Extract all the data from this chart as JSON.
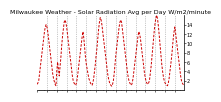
{
  "title": "Milwaukee Weather - Solar Radiation Avg per Day W/m2/minute",
  "line_color": "#cc0000",
  "background_color": "#ffffff",
  "grid_color": "#999999",
  "y_values": [
    1.2,
    1.5,
    2.0,
    3.5,
    5.0,
    6.5,
    8.0,
    9.5,
    11.0,
    12.5,
    13.5,
    14.0,
    13.5,
    12.5,
    11.0,
    9.5,
    8.0,
    6.5,
    5.0,
    3.5,
    2.5,
    1.8,
    1.2,
    0.9,
    4.0,
    6.0,
    4.5,
    3.0,
    5.0,
    7.0,
    9.5,
    11.5,
    13.0,
    14.5,
    15.0,
    14.5,
    13.5,
    12.0,
    10.5,
    9.0,
    7.5,
    6.0,
    4.5,
    3.0,
    2.0,
    1.5,
    1.2,
    1.0,
    1.5,
    2.5,
    4.0,
    5.5,
    7.0,
    8.5,
    10.0,
    11.5,
    12.5,
    11.0,
    9.0,
    7.0,
    5.5,
    4.5,
    3.5,
    2.5,
    2.0,
    1.5,
    1.2,
    1.0,
    1.5,
    2.5,
    4.0,
    5.5,
    7.5,
    9.0,
    11.0,
    13.0,
    14.5,
    15.5,
    15.0,
    14.0,
    12.5,
    11.0,
    9.5,
    8.0,
    6.5,
    5.0,
    3.5,
    2.5,
    1.8,
    1.2,
    1.0,
    0.8,
    1.2,
    2.0,
    3.5,
    5.5,
    7.5,
    9.0,
    10.5,
    12.0,
    13.5,
    14.5,
    15.0,
    14.5,
    13.0,
    11.5,
    10.0,
    8.5,
    7.0,
    5.5,
    4.0,
    2.8,
    2.0,
    1.5,
    1.2,
    1.0,
    1.5,
    2.5,
    4.0,
    5.5,
    7.0,
    8.5,
    10.0,
    11.5,
    12.5,
    12.0,
    11.0,
    9.5,
    8.0,
    6.5,
    5.0,
    3.5,
    2.5,
    1.8,
    1.4,
    1.2,
    1.5,
    2.0,
    3.5,
    5.0,
    7.0,
    9.0,
    11.0,
    13.0,
    14.5,
    15.5,
    16.0,
    15.0,
    13.5,
    11.5,
    9.5,
    7.5,
    5.5,
    4.0,
    2.8,
    2.0,
    1.5,
    1.2,
    1.0,
    0.9,
    1.5,
    2.5,
    4.0,
    5.5,
    7.0,
    9.0,
    11.0,
    12.5,
    13.5,
    12.0,
    10.5,
    9.0,
    7.5,
    6.0,
    4.5,
    3.0,
    2.0,
    1.5,
    1.2,
    1.0
  ],
  "ylim": [
    0,
    16
  ],
  "yticks": [
    2,
    4,
    6,
    8,
    10,
    12,
    14
  ],
  "vgrid_interval": 12,
  "title_fontsize": 4.5,
  "tick_fontsize": 3.5,
  "line_width": 0.7,
  "dash_pattern": [
    2.5,
    1.5
  ]
}
